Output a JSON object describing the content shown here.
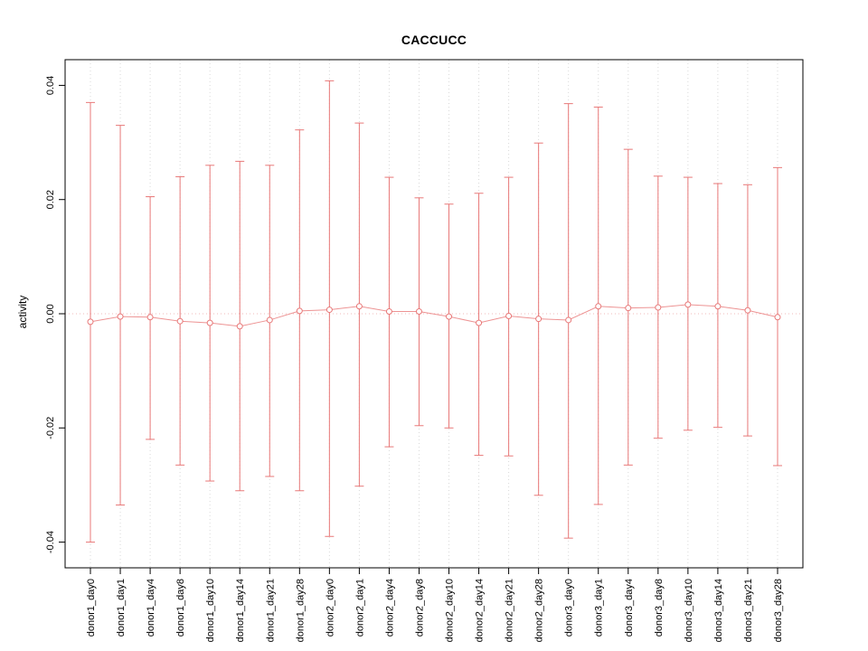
{
  "chart_data": {
    "type": "scatter",
    "title": "CACCUCC",
    "xlabel": "",
    "ylabel": "activity",
    "categories": [
      "donor1_day0",
      "donor1_day1",
      "donor1_day4",
      "donor1_day8",
      "donor1_day10",
      "donor1_day14",
      "donor1_day21",
      "donor1_day28",
      "donor2_day0",
      "donor2_day1",
      "donor2_day4",
      "donor2_day8",
      "donor2_day10",
      "donor2_day14",
      "donor2_day21",
      "donor2_day28",
      "donor3_day0",
      "donor3_day1",
      "donor3_day4",
      "donor3_day8",
      "donor3_day10",
      "donor3_day14",
      "donor3_day21",
      "donor3_day28"
    ],
    "series": [
      {
        "name": "activity",
        "values": [
          -0.0014,
          -0.0005,
          -0.0006,
          -0.0013,
          -0.0016,
          -0.0022,
          -0.0011,
          0.0005,
          0.0007,
          0.0013,
          0.0004,
          0.0004,
          -0.0005,
          -0.0016,
          -0.0004,
          -0.0009,
          -0.0011,
          0.0013,
          0.001,
          0.0011,
          0.0016,
          0.0013,
          0.0006,
          -0.0006
        ],
        "upper": [
          0.037,
          0.033,
          0.0205,
          0.024,
          0.026,
          0.0267,
          0.026,
          0.0322,
          0.0408,
          0.0334,
          0.0239,
          0.0203,
          0.0192,
          0.0211,
          0.0239,
          0.0299,
          0.0368,
          0.0362,
          0.0288,
          0.0241,
          0.0239,
          0.0228,
          0.0226,
          0.0256
        ],
        "lower": [
          -0.04,
          -0.0335,
          -0.022,
          -0.0265,
          -0.0293,
          -0.031,
          -0.0285,
          -0.031,
          -0.039,
          -0.0302,
          -0.0233,
          -0.0196,
          -0.02,
          -0.0248,
          -0.0249,
          -0.0318,
          -0.0393,
          -0.0334,
          -0.0265,
          -0.0218,
          -0.0204,
          -0.0199,
          -0.0214,
          -0.0266
        ]
      }
    ],
    "ylim": [
      -0.0445,
      0.0445
    ],
    "yticks": [
      {
        "value": -0.04,
        "label": "-0.04"
      },
      {
        "value": -0.02,
        "label": "-0.02"
      },
      {
        "value": 0,
        "label": "0.00"
      },
      {
        "value": 0.02,
        "label": "0.02"
      },
      {
        "value": 0.04,
        "label": "0.04"
      }
    ],
    "grid": {
      "vertical": true,
      "style": "dotted"
    },
    "zero_line": true,
    "legend": "none",
    "colors": {
      "series": "#e87878",
      "zero_line": "#f2b8b8",
      "grid": "#d9d9d9",
      "axis": "#000000",
      "title": "#000000"
    }
  }
}
